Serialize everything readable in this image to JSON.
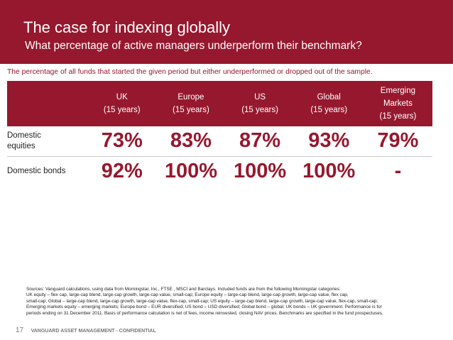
{
  "header": {
    "title": "The case for indexing globally",
    "subtitle": "What percentage of active managers underperform their benchmark?"
  },
  "note": "The percentage of all funds that started the given period but either underperformed or dropped out of the sample.",
  "table": {
    "columns": [
      {
        "lines": [
          "UK",
          "(15 years)"
        ]
      },
      {
        "lines": [
          "Europe",
          "(15 years)"
        ]
      },
      {
        "lines": [
          "US",
          "(15 years)"
        ]
      },
      {
        "lines": [
          "Global",
          "(15 years)"
        ]
      },
      {
        "lines": [
          "Emerging",
          "Markets",
          "(15 years)"
        ]
      }
    ],
    "rows": [
      {
        "label_lines": [
          "Domestic",
          "equities"
        ],
        "values": [
          "73%",
          "83%",
          "87%",
          "93%",
          "79%"
        ]
      },
      {
        "label_lines": [
          "Domestic bonds"
        ],
        "values": [
          "92%",
          "100%",
          "100%",
          "100%",
          "-"
        ]
      }
    ]
  },
  "sources": [
    "Sources: Vanguard calculations, using data from Morningstar, Inc., FTSE , MSCI and Barclays. Included funds are from the following Morningstar categories:",
    "UK equity – flex cap, large-cap blend, large-cap growth, large-cap value, small-cap; Europe equity – large-cap blend, large-cap growth, large-cap value, flex cap,",
    "small-cap; Global – large-cap blend, large-cap growth, large-cap value, flex-cap, small-cap; US equity – large-cap blend, large-cap growth, large-cap value, flex-cap, small-cap;",
    "Emerging markets equity – emerging markets; Europe bond – EUR diversified; US bond – USD diversified; Global bond – global; UK bonds – UK government. Performance is for",
    "periods ending on 31 December 2011. Basis of performance calculation is net of fees, income reinvested, closing NAV prices. Benchmarks are specified in the fund prospectuses."
  ],
  "footer": {
    "page_number": "17",
    "confidential": "VANGUARD ASSET MANAGEMENT - CONFIDENTIAL"
  },
  "colors": {
    "brand": "#96182e",
    "text": "#222222",
    "divider": "#c9c9c9"
  }
}
